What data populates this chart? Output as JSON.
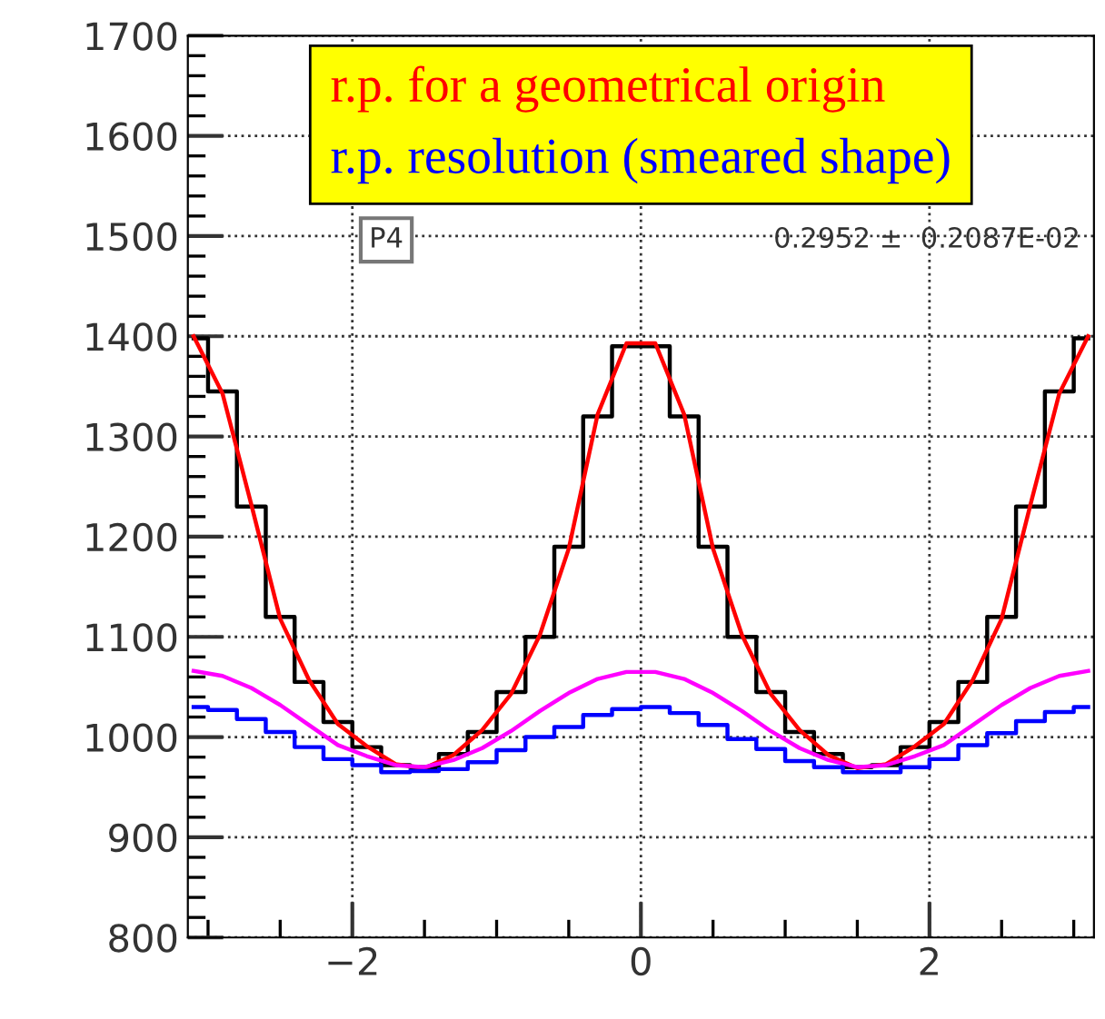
{
  "chart_data": {
    "type": "line",
    "x": [
      -3.1,
      -2.9,
      -2.7,
      -2.5,
      -2.3,
      -2.1,
      -1.9,
      -1.7,
      -1.5,
      -1.3,
      -1.1,
      -0.9,
      -0.7,
      -0.5,
      -0.3,
      -0.1,
      0.1,
      0.3,
      0.5,
      0.7,
      0.9,
      1.1,
      1.3,
      1.5,
      1.7,
      1.9,
      2.1,
      2.3,
      2.5,
      2.7,
      2.9,
      3.1
    ],
    "series": [
      {
        "type": "step",
        "color": "#000000",
        "values": [
          1398,
          1345,
          1230,
          1120,
          1055,
          1015,
          990,
          972,
          970,
          983,
          1005,
          1045,
          1100,
          1190,
          1320,
          1390,
          1390,
          1320,
          1190,
          1100,
          1045,
          1005,
          983,
          970,
          972,
          990,
          1015,
          1055,
          1120,
          1230,
          1345,
          1398
        ]
      },
      {
        "color": "#ff0000",
        "name": "r.p. for a geometrical origin",
        "values": [
          1400,
          1343,
          1232,
          1118,
          1057,
          1013,
          991,
          973,
          969,
          982,
          1007,
          1043,
          1102,
          1188,
          1322,
          1393,
          1393,
          1322,
          1188,
          1102,
          1043,
          1007,
          982,
          969,
          973,
          991,
          1013,
          1057,
          1118,
          1232,
          1343,
          1400
        ]
      },
      {
        "color": "#ff00ff",
        "values": [
          1066,
          1061,
          1049,
          1032,
          1012,
          992,
          981,
          972,
          970,
          977,
          989,
          1006,
          1026,
          1044,
          1058,
          1065,
          1065,
          1058,
          1044,
          1026,
          1006,
          989,
          977,
          970,
          972,
          981,
          992,
          1012,
          1032,
          1049,
          1061,
          1066
        ]
      },
      {
        "type": "step",
        "color": "#0000ff",
        "name": "r.p. resolution (smeared shape)",
        "values": [
          1030,
          1027,
          1018,
          1005,
          990,
          978,
          972,
          965,
          966,
          968,
          975,
          987,
          1000,
          1010,
          1022,
          1028,
          1030,
          1024,
          1012,
          998,
          988,
          976,
          970,
          965,
          965,
          970,
          978,
          992,
          1004,
          1016,
          1025,
          1030
        ]
      }
    ],
    "xlim": [
      -3.14,
      3.14
    ],
    "ylim": [
      800,
      1700
    ],
    "xticks": [
      {
        "value": -2,
        "label": "−2"
      },
      0,
      2
    ],
    "yticks": [
      800,
      900,
      1000,
      1100,
      1200,
      1300,
      1400,
      1500,
      1600,
      1700
    ],
    "grid": true,
    "legend": "top",
    "annotations": [
      "P4",
      "0.2952 ±  0.2087E-02"
    ]
  }
}
